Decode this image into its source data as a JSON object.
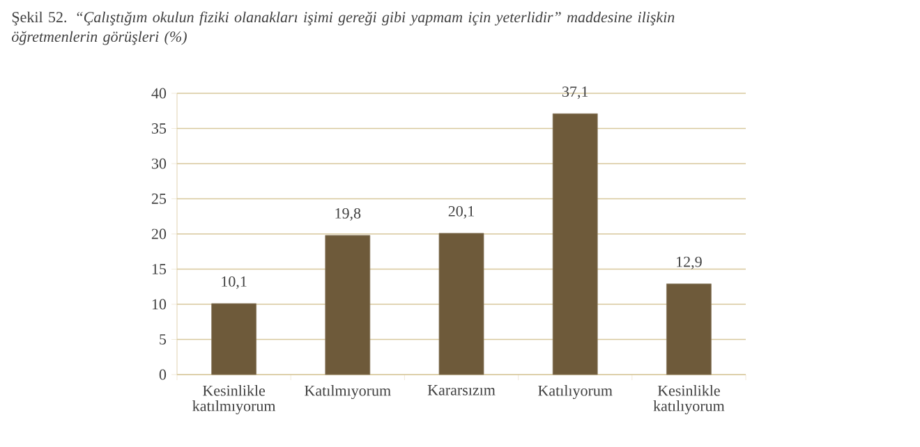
{
  "chart_data": {
    "type": "bar",
    "title": "Şekil 52.  *“Çalıştığım okulun fiziki olanakları işimi gereği gibi yapmam için yeterlidir” maddesine ilişkin öğretmenlerin görüşleri (%)*",
    "categories": [
      "Kesinlikle katılmıyorum",
      "Katılmıyorum",
      "Kararsızım",
      "Katılıyorum",
      "Kesinlikle katılıyorum"
    ],
    "values": [
      10.1,
      19.8,
      20.1,
      37.1,
      12.9
    ],
    "value_labels": [
      "10,1",
      "19,8",
      "20,1",
      "37,1",
      "12,9"
    ],
    "color": "#6e5a3a",
    "ylim": [
      0,
      40
    ],
    "yticks": [
      0,
      5,
      10,
      15,
      20,
      25,
      30,
      35,
      40
    ],
    "grid": "y"
  }
}
